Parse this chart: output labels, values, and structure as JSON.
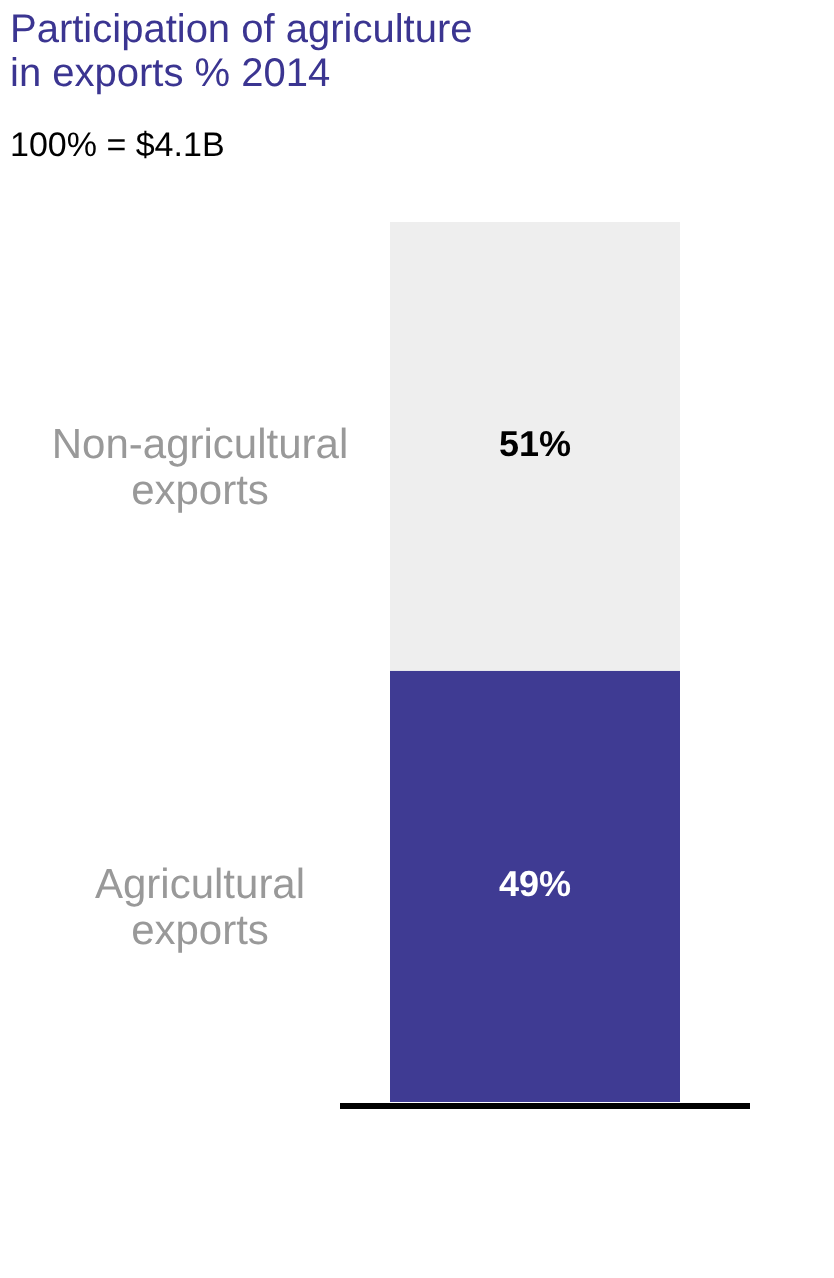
{
  "chart_data": {
    "type": "bar",
    "stacked": true,
    "title": "Participation of agriculture in exports % 2014",
    "subtitle": "100% = $4.1B",
    "categories": [
      null
    ],
    "series": [
      {
        "name": "Agricultural exports",
        "color": "#3f3b93",
        "values": [
          49
        ],
        "value_labels": [
          "49%"
        ]
      },
      {
        "name": "Non-agricultural exports",
        "color": "#eeeeee",
        "values": [
          51
        ],
        "value_labels": [
          "51%"
        ]
      }
    ],
    "legend": false
  }
}
